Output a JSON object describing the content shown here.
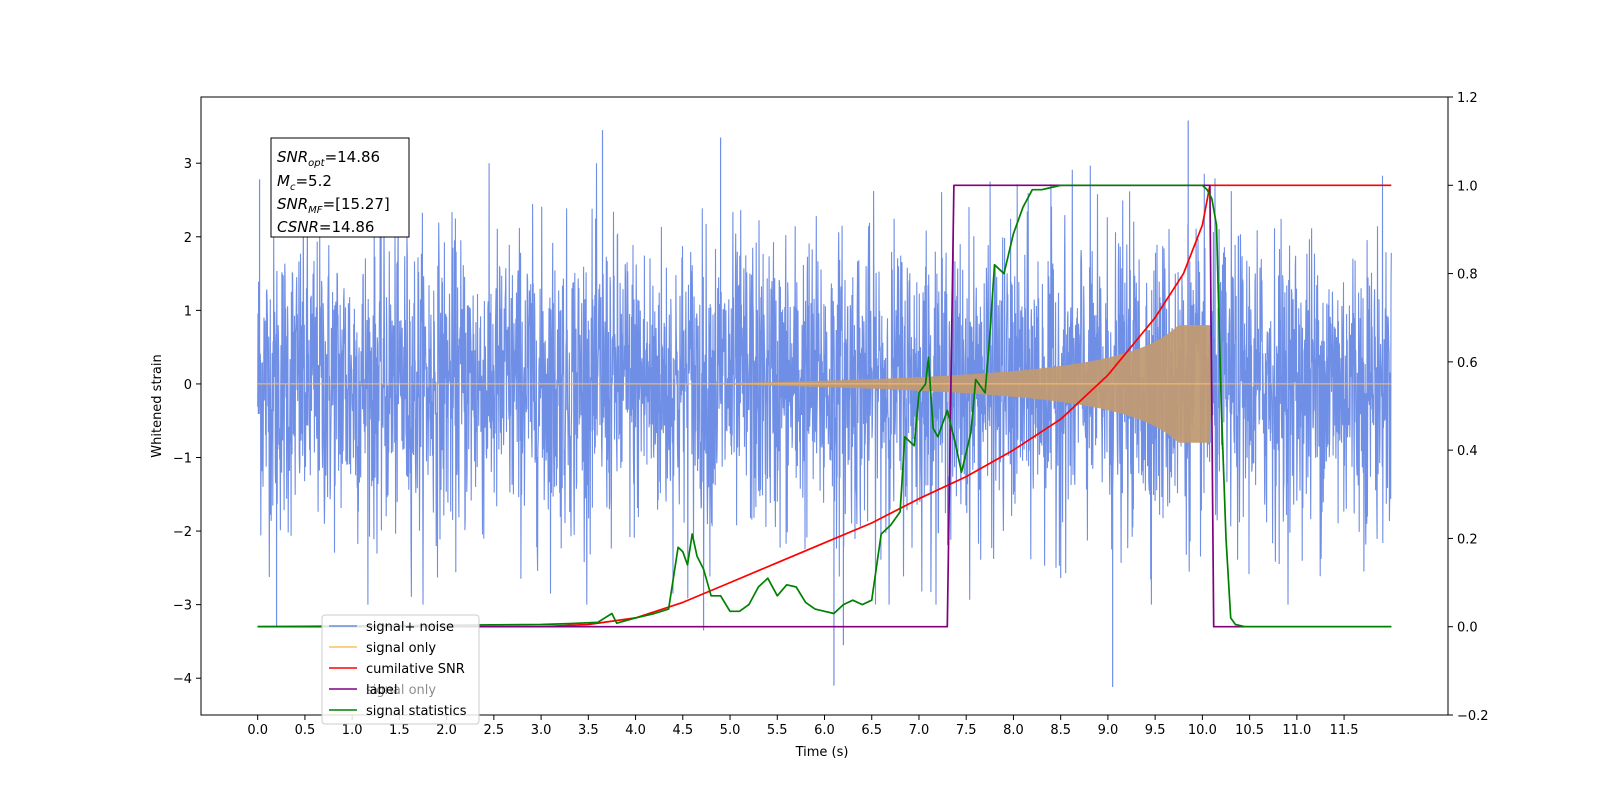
{
  "chart_data": {
    "type": "line",
    "xlabel": "Time (s)",
    "ylabel": "Whitened strain",
    "xlim": [
      -0.6,
      12.6
    ],
    "ylim": [
      -4.5,
      3.9
    ],
    "y2lim": [
      -0.2,
      1.2
    ],
    "x_ticks": [
      "0.0",
      "0.5",
      "1.0",
      "1.5",
      "2.0",
      "2.5",
      "3.0",
      "3.5",
      "4.0",
      "4.5",
      "5.0",
      "5.5",
      "6.0",
      "6.5",
      "7.0",
      "7.5",
      "8.0",
      "8.5",
      "9.0",
      "9.5",
      "10.0",
      "10.5",
      "11.0",
      "11.5"
    ],
    "y_ticks": [
      "3",
      "2",
      "1",
      "0",
      "−1",
      "−2",
      "−3",
      "−4"
    ],
    "y2_ticks": [
      "1.2",
      "1.0",
      "0.8",
      "0.6",
      "0.4",
      "0.2",
      "0.0",
      "−0.2"
    ],
    "annotation": {
      "snr_opt": "14.86",
      "mc": "5.2",
      "snr_mf": "[15.27]",
      "csnr": "14.86"
    },
    "legend": {
      "position": "lower-left",
      "entries": [
        "signal+ noise",
        "signal only",
        "cumilative SNR",
        "label",
        "signal statistics"
      ],
      "overlapped_text": "signal only"
    },
    "series": [
      {
        "name": "signal+ noise",
        "axis": "left",
        "color": "#6f8ee6",
        "x_range": [
          0.0,
          12.0
        ],
        "noise_envelope": 1.0,
        "extremes": [
          {
            "x": 0.02,
            "y": 2.78
          },
          {
            "x": 0.2,
            "y": -3.3
          },
          {
            "x": 3.65,
            "y": 3.45
          },
          {
            "x": 4.9,
            "y": 3.35
          },
          {
            "x": 6.1,
            "y": -4.1
          },
          {
            "x": 6.2,
            "y": -3.55
          },
          {
            "x": 9.05,
            "y": -4.12
          },
          {
            "x": 9.85,
            "y": 3.58
          },
          {
            "x": 4.72,
            "y": -3.35
          }
        ]
      },
      {
        "name": "signal only",
        "axis": "left",
        "color": "#ffbf60",
        "chirp_start": 3.0,
        "merger": 10.08,
        "peak_amplitude": 0.8
      },
      {
        "name": "cumilative SNR",
        "axis": "right",
        "color": "#ff0000",
        "x": [
          0.0,
          3.0,
          3.5,
          4.0,
          4.5,
          5.0,
          5.5,
          6.0,
          6.5,
          7.0,
          7.5,
          8.0,
          8.5,
          9.0,
          9.5,
          9.8,
          10.0,
          10.08,
          10.1,
          12.0
        ],
        "values": [
          0.0,
          0.0,
          0.005,
          0.02,
          0.055,
          0.1,
          0.145,
          0.19,
          0.235,
          0.29,
          0.34,
          0.4,
          0.47,
          0.57,
          0.7,
          0.8,
          0.91,
          1.0,
          1.0,
          1.0
        ]
      },
      {
        "name": "label",
        "axis": "right",
        "color": "#800080",
        "x": [
          0.0,
          7.3,
          7.37,
          10.08,
          10.12,
          12.0
        ],
        "values": [
          0.0,
          0.0,
          1.0,
          1.0,
          0.0,
          0.0
        ]
      },
      {
        "name": "signal statistics",
        "axis": "right",
        "color": "#008000",
        "x": [
          0.0,
          3.0,
          3.3,
          3.6,
          3.75,
          3.8,
          4.0,
          4.2,
          4.35,
          4.45,
          4.5,
          4.55,
          4.6,
          4.65,
          4.72,
          4.8,
          4.9,
          5.0,
          5.1,
          5.2,
          5.3,
          5.4,
          5.5,
          5.6,
          5.7,
          5.8,
          5.9,
          6.0,
          6.1,
          6.2,
          6.3,
          6.4,
          6.5,
          6.6,
          6.7,
          6.8,
          6.85,
          6.95,
          7.0,
          7.07,
          7.1,
          7.15,
          7.2,
          7.3,
          7.38,
          7.45,
          7.55,
          7.6,
          7.7,
          7.75,
          7.8,
          7.9,
          8.0,
          8.1,
          8.2,
          8.3,
          8.4,
          8.5,
          8.6,
          9.0,
          9.5,
          10.0,
          10.05,
          10.1,
          10.15,
          10.2,
          10.25,
          10.3,
          10.35,
          10.45,
          12.0
        ],
        "values": [
          0.0,
          0.005,
          0.007,
          0.01,
          0.03,
          0.008,
          0.02,
          0.03,
          0.04,
          0.18,
          0.17,
          0.14,
          0.21,
          0.16,
          0.13,
          0.07,
          0.07,
          0.035,
          0.035,
          0.05,
          0.09,
          0.11,
          0.07,
          0.095,
          0.09,
          0.055,
          0.04,
          0.035,
          0.03,
          0.05,
          0.06,
          0.05,
          0.06,
          0.21,
          0.23,
          0.26,
          0.43,
          0.41,
          0.53,
          0.55,
          0.61,
          0.45,
          0.43,
          0.49,
          0.42,
          0.35,
          0.44,
          0.56,
          0.53,
          0.66,
          0.82,
          0.8,
          0.89,
          0.95,
          0.99,
          0.99,
          0.995,
          1.0,
          1.0,
          1.0,
          1.0,
          1.0,
          0.99,
          0.97,
          0.91,
          0.5,
          0.2,
          0.02,
          0.005,
          0.0,
          0.0
        ]
      }
    ]
  }
}
